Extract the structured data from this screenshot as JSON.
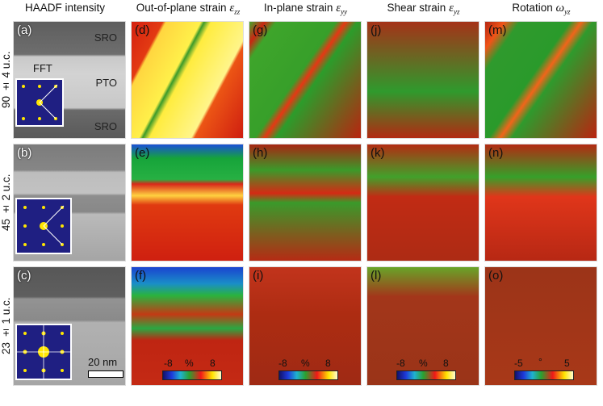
{
  "columns": {
    "haadf": "HAADF intensity",
    "ezz_prefix": "Out-of-plane strain ",
    "ezz_sym": "ε",
    "ezz_sub": "zz",
    "eyy_prefix": "In-plane strain ",
    "eyy_sym": "ε",
    "eyy_sub": "yy",
    "eyz_prefix": "Shear strain ",
    "eyz_sym": "ε",
    "eyz_sub": "yz",
    "wyz_prefix": "Rotation ",
    "wyz_sym": "ω",
    "wyz_sub": "yz"
  },
  "rows": [
    "90 ± 4 u.c.",
    "45 ± 2 u.c.",
    "23 ± 1 u.c."
  ],
  "panels": {
    "a": "(a)",
    "b": "(b)",
    "c": "(c)",
    "d": "(d)",
    "e": "(e)",
    "f": "(f)",
    "g": "(g)",
    "h": "(h)",
    "i": "(i)",
    "j": "(j)",
    "k": "(k)",
    "l": "(l)",
    "m": "(m)",
    "n": "(n)",
    "o": "(o)"
  },
  "layers": {
    "top": "SRO",
    "middle": "PTO",
    "bottom": "SRO"
  },
  "fft": "FFT",
  "scalebar": "20 nm",
  "colorbars": {
    "f": {
      "min": "-8",
      "unit": "%",
      "max": "8"
    },
    "i": {
      "min": "-8",
      "unit": "%",
      "max": "8"
    },
    "l": {
      "min": "-8",
      "unit": "%",
      "max": "8"
    },
    "o": {
      "min": "-5",
      "unit": "°",
      "max": "5"
    }
  }
}
